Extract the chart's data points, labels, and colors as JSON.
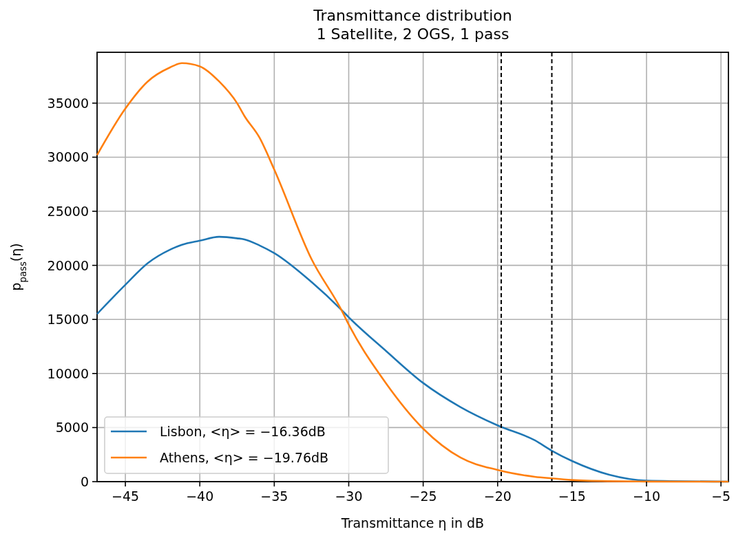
{
  "chart_data": {
    "type": "line",
    "title": "Transmittance distribution\n1 Satellite, 2 OGS, 1 pass",
    "xlabel": "Transmittance η in dB",
    "ylabel": "p$_{pass}$(η)",
    "x": [
      -46.9,
      -45,
      -43.5,
      -42,
      -41.2,
      -40,
      -38.7,
      -37.5,
      -37,
      -36,
      -35,
      -32.5,
      -30.5,
      -30,
      -27.5,
      -25,
      -22.5,
      -20,
      -17.5,
      -16.36,
      -15,
      -12.5,
      -10,
      -7.5,
      -4.5
    ],
    "series": [
      {
        "name": "Lisbon, <η> = −16.36dB",
        "color": "#1f77b4",
        "values": [
          15500,
          18200,
          20200,
          21450,
          21900,
          22280,
          22640,
          22500,
          22400,
          21850,
          21130,
          18460,
          15900,
          15200,
          12090,
          9120,
          6900,
          5200,
          3820,
          2860,
          1910,
          640,
          100,
          null,
          0
        ]
      },
      {
        "name": "Athens, <η> = −19.76dB",
        "color": "#ff7f0e",
        "values": [
          30200,
          34500,
          37000,
          38300,
          38700,
          38400,
          37000,
          35000,
          33800,
          31830,
          28850,
          20580,
          15900,
          14530,
          9100,
          4900,
          2230,
          1080,
          450,
          300,
          150,
          40,
          10,
          0,
          0
        ]
      }
    ],
    "xlim": [
      -46.9,
      -4.5
    ],
    "xticks": [
      -45,
      -40,
      -35,
      -30,
      -25,
      -20,
      -15,
      -10,
      -5
    ],
    "ylim": [
      0,
      39700
    ],
    "yticks": [
      0,
      5000,
      10000,
      15000,
      20000,
      25000,
      30000,
      35000
    ],
    "ref_lines": [
      {
        "axis": "x",
        "value": -19.76,
        "color": "#000000",
        "line_style": "dashed"
      },
      {
        "axis": "x",
        "value": -16.36,
        "color": "#000000",
        "line_style": "dashed"
      }
    ],
    "grid": true,
    "legend": "bottom left",
    "line_style": "solid",
    "marker": "none"
  }
}
